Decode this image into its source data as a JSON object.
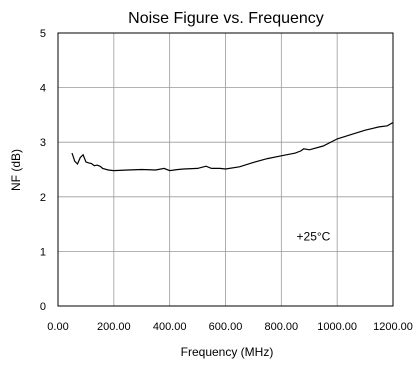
{
  "chart_data": {
    "type": "line",
    "title": "Noise Figure vs. Frequency",
    "xlabel": "Frequency (MHz)",
    "ylabel": "NF (dB)",
    "xlim": [
      0,
      1200
    ],
    "ylim": [
      0,
      5
    ],
    "x_ticks": [
      0,
      200,
      400,
      600,
      800,
      1000,
      1200
    ],
    "x_tick_labels": [
      "0.00",
      "200.00",
      "400.00",
      "600.00",
      "800.00",
      "1000.00",
      "1200.00"
    ],
    "y_ticks": [
      0,
      1,
      2,
      3,
      4,
      5
    ],
    "y_tick_labels": [
      "0",
      "1",
      "2",
      "3",
      "4",
      "5"
    ],
    "grid": true,
    "annotation": "+25°C",
    "series": [
      {
        "color": "#000000",
        "x": [
          50,
          60,
          70,
          80,
          90,
          100,
          110,
          120,
          130,
          140,
          150,
          160,
          180,
          200,
          250,
          300,
          350,
          380,
          400,
          430,
          450,
          500,
          530,
          550,
          580,
          600,
          650,
          700,
          750,
          800,
          850,
          870,
          880,
          900,
          950,
          1000,
          1050,
          1100,
          1150,
          1180,
          1200
        ],
        "y": [
          2.8,
          2.65,
          2.6,
          2.72,
          2.77,
          2.64,
          2.62,
          2.61,
          2.57,
          2.58,
          2.56,
          2.52,
          2.49,
          2.48,
          2.49,
          2.5,
          2.49,
          2.52,
          2.48,
          2.5,
          2.51,
          2.52,
          2.56,
          2.52,
          2.52,
          2.51,
          2.55,
          2.63,
          2.7,
          2.75,
          2.8,
          2.84,
          2.88,
          2.86,
          2.93,
          3.06,
          3.14,
          3.22,
          3.28,
          3.3,
          3.36
        ]
      }
    ]
  }
}
